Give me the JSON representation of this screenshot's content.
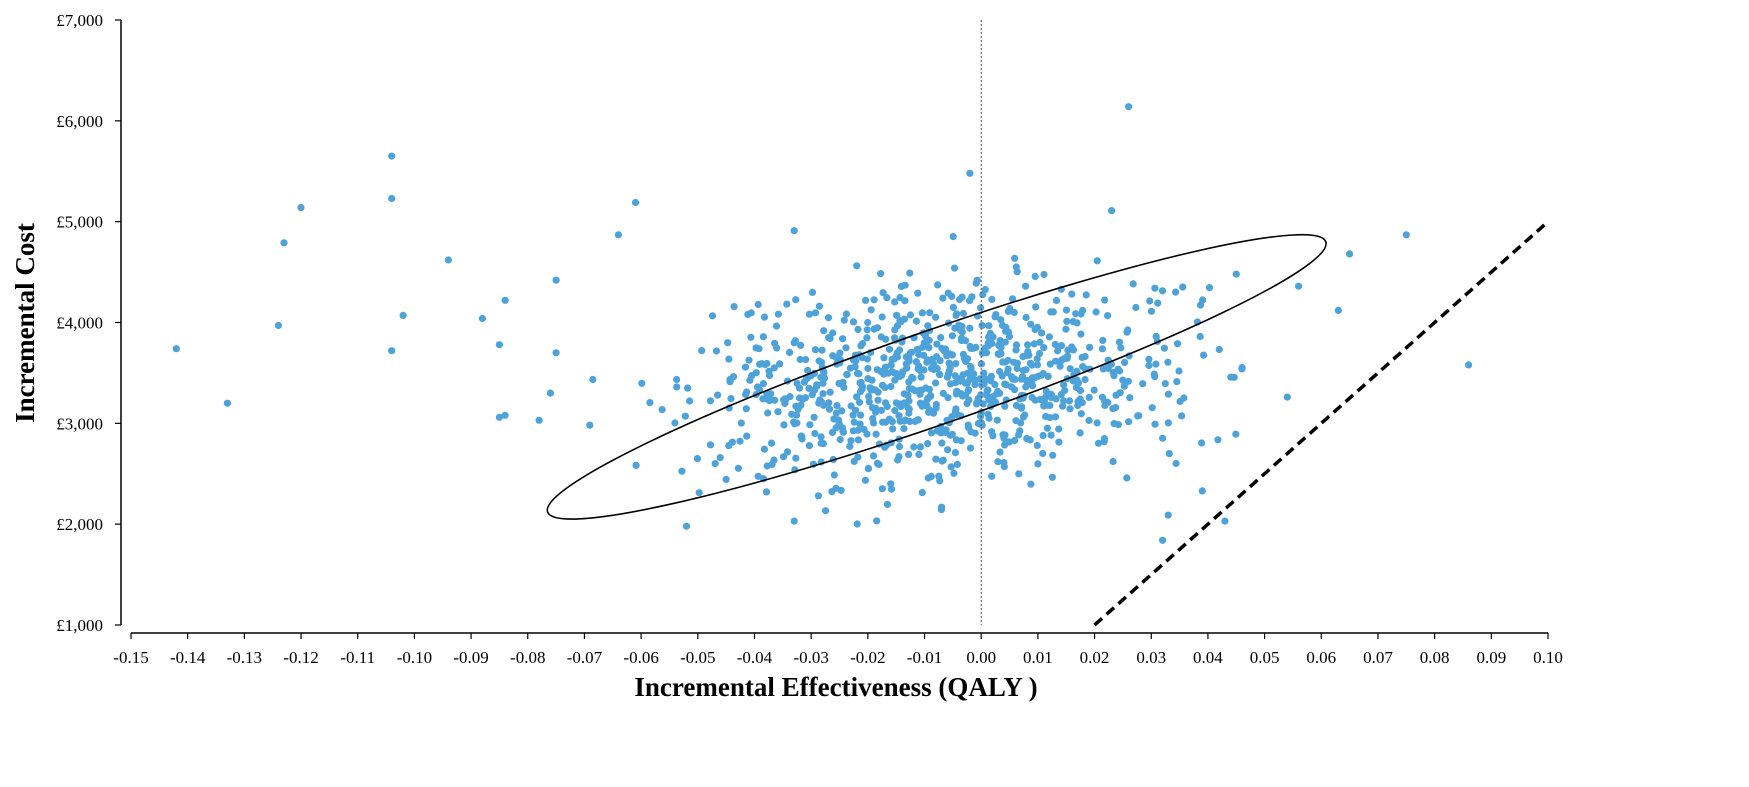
{
  "chart_data": {
    "type": "scatter",
    "title": "",
    "xlabel": "Incremental Effectiveness (QALY )",
    "ylabel": "Incremental Cost",
    "xlim": [
      -0.15,
      0.1
    ],
    "ylim": [
      1000,
      7000
    ],
    "x_ticks": [
      "-0.15",
      "-0.14",
      "-0.13",
      "-0.12",
      "-0.11",
      "-0.10",
      "-0.09",
      "-0.08",
      "-0.07",
      "-0.06",
      "-0.05",
      "-0.04",
      "-0.03",
      "-0.02",
      "-0.01",
      "0.00",
      "0.01",
      "0.02",
      "0.03",
      "0.04",
      "0.05",
      "0.06",
      "0.07",
      "0.08",
      "0.09",
      "0.10"
    ],
    "y_ticks": [
      "£1,000",
      "£2,000",
      "£3,000",
      "£4,000",
      "£5,000",
      "£6,000",
      "£7,000"
    ],
    "grid": false,
    "legend": "none",
    "colors": {
      "points": "#4da3d9",
      "ellipse": "#000000",
      "threshold_line": "#000000",
      "zero_line": "#555555"
    },
    "reference_lines": [
      {
        "kind": "vertical",
        "x": 0.0,
        "style": "dotted"
      },
      {
        "kind": "threshold",
        "style": "dashed",
        "points": [
          [
            0.02,
            1000
          ],
          [
            0.1,
            5000
          ]
        ]
      }
    ],
    "confidence_ellipse": {
      "center": [
        -0.0085,
        3500
      ],
      "endpoints": [
        [
          -0.0765,
          2120
        ],
        [
          0.0608,
          4800
        ]
      ],
      "width_points": [
        [
          -0.0105,
          3950
        ],
        [
          -0.0065,
          3050
        ]
      ]
    },
    "outlier_points": [
      [
        -0.142,
        3740
      ],
      [
        -0.133,
        3200
      ],
      [
        -0.124,
        3970
      ],
      [
        -0.123,
        4790
      ],
      [
        -0.12,
        5140
      ],
      [
        -0.104,
        5650
      ],
      [
        -0.104,
        5230
      ],
      [
        -0.104,
        3720
      ],
      [
        -0.102,
        4070
      ],
      [
        -0.094,
        4620
      ],
      [
        -0.088,
        4040
      ],
      [
        -0.085,
        3060
      ],
      [
        -0.084,
        3080
      ],
      [
        -0.084,
        4220
      ],
      [
        -0.085,
        3780
      ],
      [
        -0.078,
        3030
      ],
      [
        -0.076,
        3300
      ],
      [
        -0.075,
        3700
      ],
      [
        -0.075,
        4420
      ],
      [
        -0.061,
        5190
      ],
      [
        -0.064,
        4870
      ],
      [
        -0.052,
        1980
      ],
      [
        -0.033,
        4910
      ],
      [
        -0.033,
        2030
      ],
      [
        -0.002,
        5480
      ],
      [
        0.023,
        5110
      ],
      [
        0.026,
        6140
      ],
      [
        0.032,
        1840
      ],
      [
        0.033,
        2090
      ],
      [
        0.043,
        2030
      ],
      [
        0.054,
        3260
      ],
      [
        0.056,
        4360
      ],
      [
        0.063,
        4120
      ],
      [
        0.065,
        4680
      ],
      [
        0.075,
        4870
      ],
      [
        0.086,
        3580
      ],
      [
        0.045,
        4480
      ],
      [
        0.046,
        3540
      ],
      [
        0.039,
        2330
      ]
    ],
    "cloud": {
      "n": 900,
      "mean_x": -0.006,
      "mean_y": 3400,
      "sd_x": 0.022,
      "sd_y": 480,
      "correlation": 0.15,
      "x_range": [
        -0.07,
        0.047
      ],
      "y_range": [
        1780,
        4900
      ],
      "seed": 7
    }
  }
}
